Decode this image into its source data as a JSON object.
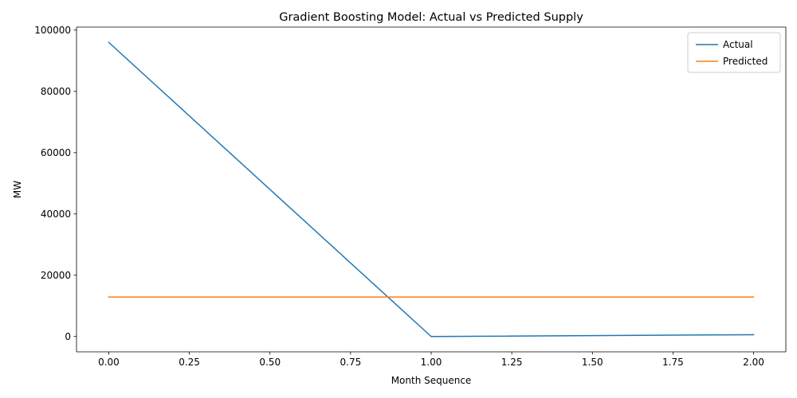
{
  "chart_data": {
    "type": "line",
    "title": "Gradient Boosting Model: Actual vs Predicted Supply",
    "xlabel": "Month Sequence",
    "ylabel": "MW",
    "x": [
      0,
      1,
      2
    ],
    "xlim": [
      -0.1,
      2.1
    ],
    "ylim": [
      -5000,
      101000
    ],
    "xticks": [
      0.0,
      0.25,
      0.5,
      0.75,
      1.0,
      1.25,
      1.5,
      1.75,
      2.0
    ],
    "xtick_labels": [
      "0.00",
      "0.25",
      "0.50",
      "0.75",
      "1.00",
      "1.25",
      "1.50",
      "1.75",
      "2.00"
    ],
    "yticks": [
      0,
      20000,
      40000,
      60000,
      80000,
      100000
    ],
    "ytick_labels": [
      "0",
      "20000",
      "40000",
      "60000",
      "80000",
      "100000"
    ],
    "grid": false,
    "legend_position": "top-right",
    "series": [
      {
        "name": "Actual",
        "color": "#1f77b4",
        "values": [
          96000,
          0,
          600
        ]
      },
      {
        "name": "Predicted",
        "color": "#ff7f0e",
        "values": [
          12900,
          12900,
          12900
        ]
      }
    ]
  }
}
